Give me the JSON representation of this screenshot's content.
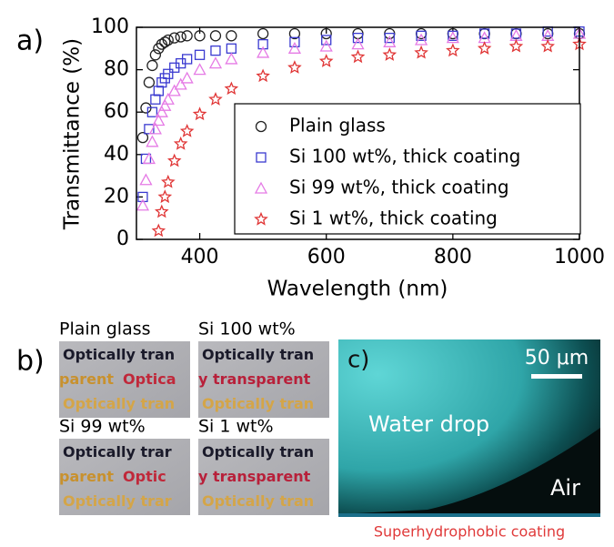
{
  "chart_data": {
    "type": "scatter",
    "panel_label": "a)",
    "x_label": "Wavelength (nm)",
    "y_label": "Transmittance (%)",
    "x": [
      310,
      315,
      320,
      325,
      330,
      335,
      340,
      345,
      350,
      360,
      370,
      380,
      400,
      425,
      450,
      500,
      550,
      600,
      650,
      700,
      750,
      800,
      850,
      900,
      950,
      1000
    ],
    "series": [
      {
        "name": "Plain glass",
        "color": "#222222",
        "marker": "circle",
        "values": [
          48,
          62,
          74,
          82,
          87,
          90,
          92,
          93,
          94,
          95,
          95.5,
          96,
          96,
          96,
          96,
          97,
          97,
          97,
          97,
          97,
          97,
          97,
          97,
          97,
          97,
          97
        ]
      },
      {
        "name": "Si 100 wt%, thick coating",
        "color": "#3a3ad0",
        "marker": "square",
        "values": [
          20,
          38,
          52,
          60,
          66,
          70,
          74,
          76,
          78,
          81,
          83,
          85,
          87,
          89,
          90,
          92,
          93,
          94,
          95,
          95,
          96,
          96,
          97,
          97,
          98,
          98
        ]
      },
      {
        "name": "Si 99 wt%, thick coating",
        "color": "#e57ae5",
        "marker": "triangle",
        "values": [
          16,
          28,
          38,
          46,
          52,
          56,
          60,
          63,
          66,
          70,
          73,
          76,
          80,
          83,
          85,
          88,
          90,
          91,
          92,
          93,
          94,
          95,
          95,
          96,
          96,
          97
        ]
      },
      {
        "name": "Si 1 wt%, thick coating",
        "color": "#e03535",
        "marker": "star",
        "values": [
          null,
          null,
          null,
          null,
          null,
          4,
          13,
          20,
          27,
          37,
          45,
          51,
          59,
          66,
          71,
          77,
          81,
          84,
          86,
          87,
          88,
          89,
          90,
          91,
          91,
          92
        ]
      }
    ],
    "xlim": [
      300,
      1000
    ],
    "xticks": [
      400,
      600,
      800,
      1000
    ],
    "ylim": [
      0,
      100
    ],
    "yticks": [
      0,
      20,
      40,
      60,
      80,
      100
    ]
  },
  "panel_b": {
    "label": "b)",
    "samples": [
      {
        "name": "Plain glass",
        "lines": [
          [
            "Optically tran"
          ],
          [
            "parent",
            "Optica"
          ],
          [
            "Optically tran"
          ]
        ]
      },
      {
        "name": "Si 100 wt%",
        "lines": [
          [
            "Optically tran"
          ],
          [
            "y transparent"
          ],
          [
            "Optically tran"
          ]
        ]
      },
      {
        "name": "Si 99 wt%",
        "lines": [
          [
            "Optically trar"
          ],
          [
            "parent",
            "Optic"
          ],
          [
            "Optically trar"
          ]
        ]
      },
      {
        "name": "Si 1 wt%",
        "lines": [
          [
            "Optically tran"
          ],
          [
            "y transparent"
          ],
          [
            "Optically tran"
          ]
        ]
      }
    ]
  },
  "panel_c": {
    "label": "c)",
    "scale_bar": "50 μm",
    "water": "Water drop",
    "air": "Air",
    "coating": "Superhydrophobic coating"
  }
}
